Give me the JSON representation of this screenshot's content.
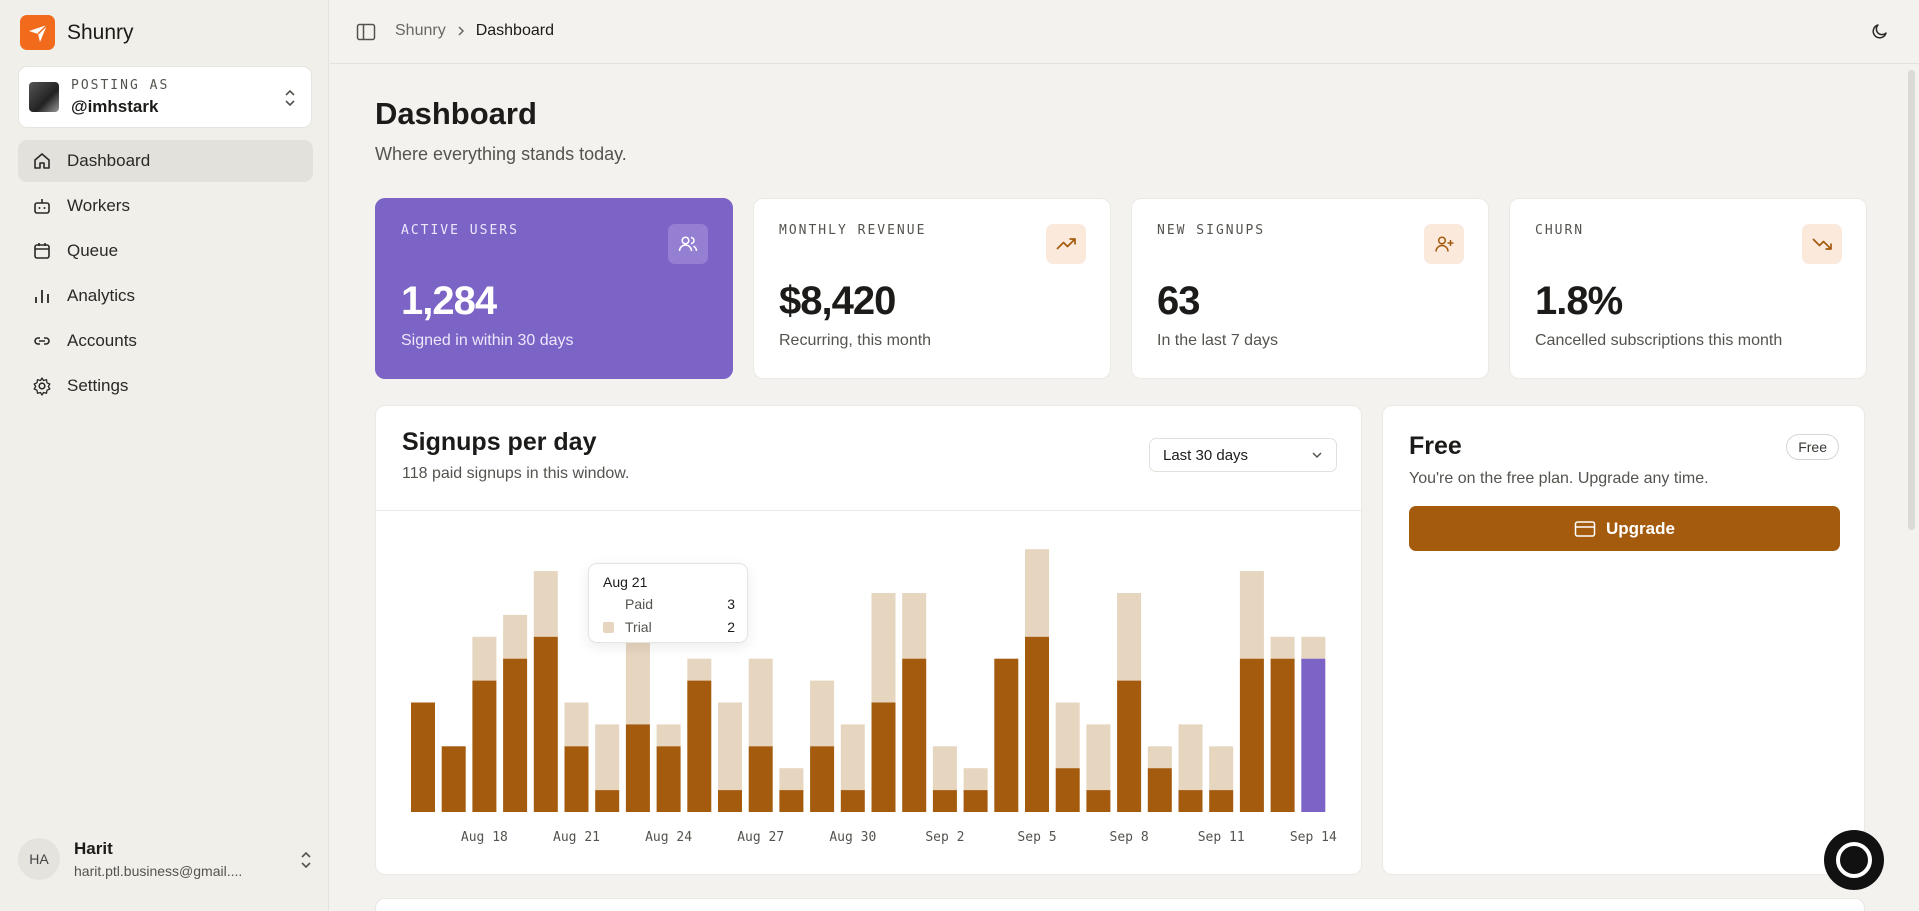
{
  "app": {
    "name": "Shunry"
  },
  "posting": {
    "label": "POSTING AS",
    "handle": "@imhstark"
  },
  "nav": {
    "items": [
      {
        "label": "Dashboard",
        "icon": "home-icon",
        "active": true
      },
      {
        "label": "Workers",
        "icon": "bot-icon"
      },
      {
        "label": "Queue",
        "icon": "calendar-icon"
      },
      {
        "label": "Analytics",
        "icon": "bar-chart-icon"
      },
      {
        "label": "Accounts",
        "icon": "link-icon"
      },
      {
        "label": "Settings",
        "icon": "gear-icon"
      }
    ]
  },
  "user": {
    "initials": "HA",
    "name": "Harit",
    "email": "harit.ptl.business@gmail...."
  },
  "breadcrumb": {
    "root": "Shunry",
    "current": "Dashboard"
  },
  "page": {
    "title": "Dashboard",
    "subtitle": "Where everything stands today."
  },
  "stats": [
    {
      "label": "ACTIVE USERS",
      "value": "1,284",
      "desc": "Signed in within 30 days",
      "icon": "users-icon"
    },
    {
      "label": "MONTHLY REVENUE",
      "value": "$8,420",
      "desc": "Recurring, this month",
      "icon": "trending-up-icon"
    },
    {
      "label": "NEW SIGNUPS",
      "value": "63",
      "desc": "In the last 7 days",
      "icon": "user-plus-icon"
    },
    {
      "label": "CHURN",
      "value": "1.8%",
      "desc": "Cancelled subscriptions this month",
      "icon": "trending-down-icon"
    }
  ],
  "signups": {
    "title": "Signups per day",
    "subtitle": "118 paid signups in this window.",
    "range": "Last 30 days"
  },
  "tooltip": {
    "date": "Aug 21",
    "rows": [
      {
        "label": "Paid",
        "value": "3"
      },
      {
        "label": "Trial",
        "value": "2"
      }
    ]
  },
  "plan": {
    "name": "Free",
    "badge": "Free",
    "desc": "You're on the free plan. Upgrade any time.",
    "button": "Upgrade"
  },
  "colors": {
    "accent": "#7c63c6",
    "paid": "#a45b0d",
    "trial": "#e6d5bf",
    "highlight": "#7c63c6"
  },
  "chart_data": {
    "type": "bar",
    "stacked": true,
    "categories": [
      "Aug 16",
      "Aug 17",
      "Aug 18",
      "Aug 19",
      "Aug 20",
      "Aug 21",
      "Aug 22",
      "Aug 23",
      "Aug 24",
      "Aug 25",
      "Aug 26",
      "Aug 27",
      "Aug 28",
      "Aug 29",
      "Aug 30",
      "Aug 31",
      "Sep 1",
      "Sep 2",
      "Sep 3",
      "Sep 4",
      "Sep 5",
      "Sep 6",
      "Sep 7",
      "Sep 8",
      "Sep 9",
      "Sep 10",
      "Sep 11",
      "Sep 12",
      "Sep 13",
      "Sep 14"
    ],
    "tick_labels": [
      "Aug 18",
      "Aug 21",
      "Aug 24",
      "Aug 27",
      "Aug 30",
      "Sep 2",
      "Sep 5",
      "Sep 8",
      "Sep 11",
      "Sep 14"
    ],
    "tick_indices": [
      2,
      5,
      8,
      11,
      14,
      17,
      20,
      23,
      26,
      29
    ],
    "series": [
      {
        "name": "Paid",
        "values": [
          5,
          3,
          6,
          7,
          8,
          3,
          1,
          4,
          3,
          6,
          1,
          3,
          1,
          3,
          1,
          5,
          7,
          1,
          1,
          7,
          8,
          2,
          1,
          6,
          2,
          1,
          1,
          7,
          7,
          7
        ]
      },
      {
        "name": "Trial",
        "values": [
          0,
          0,
          2,
          2,
          3,
          2,
          3,
          6,
          1,
          1,
          4,
          4,
          1,
          3,
          3,
          5,
          3,
          2,
          1,
          0,
          4,
          3,
          3,
          4,
          1,
          3,
          2,
          4,
          1,
          1
        ]
      }
    ],
    "highlight_index": 29,
    "ylim": [
      0,
      12.5
    ]
  }
}
